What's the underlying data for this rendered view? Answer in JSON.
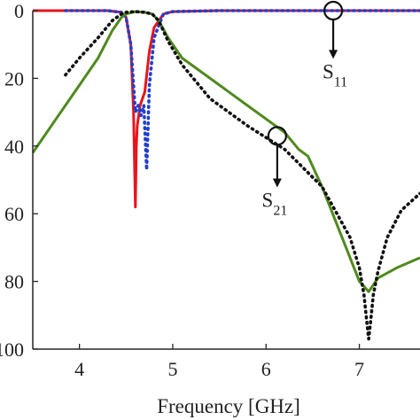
{
  "chart_data": {
    "type": "line",
    "xlabel": "Frequency [GHz]",
    "ylabel": "",
    "xlim": [
      3.5,
      7.65
    ],
    "ylim": [
      100,
      0
    ],
    "y_inverted": true,
    "grid": false,
    "legend": "none",
    "x_ticks": [
      4,
      5,
      6,
      7
    ],
    "x_tick_labels": [
      "4",
      "5",
      "6",
      "7"
    ],
    "y_ticks": [
      0,
      20,
      40,
      60,
      80,
      100
    ],
    "y_tick_labels": [
      "0",
      "20",
      "40",
      "60",
      "80",
      "100"
    ],
    "series": [
      {
        "color": "#e8141c",
        "style": "solid",
        "x": [
          3.5,
          4.3,
          4.45,
          4.5,
          4.55,
          4.58,
          4.6,
          4.61,
          4.62,
          4.65,
          4.7,
          4.75,
          4.8,
          4.9,
          5.0,
          5.5,
          6.0,
          7.0,
          7.65
        ],
        "y": [
          0,
          0,
          0.5,
          2,
          10,
          30,
          58,
          40,
          34,
          28,
          24,
          12,
          5,
          1,
          0.3,
          0,
          0,
          0,
          0
        ]
      },
      {
        "color": "#1f3fd0",
        "style": "dotted",
        "x": [
          3.85,
          4.3,
          4.45,
          4.5,
          4.55,
          4.6,
          4.63,
          4.66,
          4.69,
          4.72,
          4.75,
          4.8,
          4.9,
          5.0,
          5.5,
          6.0,
          7.0,
          7.65
        ],
        "y": [
          0,
          0,
          0.5,
          2,
          10,
          30,
          28,
          31,
          28,
          47,
          22,
          8,
          1,
          0.3,
          0,
          0,
          0,
          0
        ]
      },
      {
        "color": "#4f8a1e",
        "style": "solid",
        "x": [
          3.5,
          3.75,
          4.0,
          4.2,
          4.35,
          4.45,
          4.5,
          4.6,
          4.7,
          4.78,
          4.85,
          4.95,
          5.1,
          5.4,
          5.8,
          6.2,
          6.35,
          6.45,
          6.6,
          6.8,
          7.0,
          7.1,
          7.2,
          7.4,
          7.65
        ],
        "y": [
          42,
          32,
          22,
          14,
          6,
          2,
          1,
          0.3,
          0.5,
          1,
          3,
          8,
          14,
          20,
          28,
          36,
          41,
          43,
          52,
          66,
          80,
          83,
          79,
          76,
          73
        ]
      },
      {
        "color": "#111111",
        "style": "dotted",
        "x": [
          3.85,
          4.0,
          4.2,
          4.35,
          4.45,
          4.5,
          4.6,
          4.7,
          4.78,
          4.85,
          4.95,
          5.1,
          5.4,
          5.8,
          6.2,
          6.6,
          6.9,
          7.0,
          7.05,
          7.08,
          7.1,
          7.12,
          7.15,
          7.2,
          7.3,
          7.45,
          7.65
        ],
        "y": [
          19,
          14,
          8,
          3,
          1,
          0.5,
          0.3,
          0.5,
          1,
          3,
          9,
          16,
          26,
          34,
          41,
          52,
          67,
          76,
          84,
          92,
          97,
          92,
          84,
          77,
          67,
          59,
          54
        ]
      }
    ],
    "annotations": [
      {
        "main": "S",
        "sub": "11",
        "marker_x": 6.72,
        "marker_y": 0,
        "label_x": 6.7,
        "label_y": 20
      },
      {
        "main": "S",
        "sub": "21",
        "marker_x": 6.12,
        "marker_y": 37,
        "label_x": 6.05,
        "label_y": 58
      }
    ]
  }
}
